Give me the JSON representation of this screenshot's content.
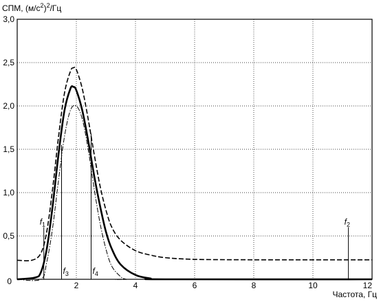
{
  "chart_data": {
    "type": "line",
    "ylabel": "СПМ, (м/с",
    "ylabel_sup": "2",
    "ylabel_sup2": "2",
    "ylabel_tail": "/Гц",
    "ylabel_close": ")",
    "xlabel": "Частота, Гц",
    "xlim": [
      0,
      12
    ],
    "ylim": [
      0,
      3.0
    ],
    "grid": true,
    "x_ticks": [
      0,
      2,
      4,
      6,
      8,
      10,
      12
    ],
    "x_tick_labels": [
      "0",
      "2",
      "4",
      "6",
      "8",
      "10",
      "12"
    ],
    "y_ticks": [
      0.5,
      1.0,
      1.5,
      2.0,
      2.5,
      3.0
    ],
    "y_tick_labels": [
      "0,5",
      "1,0",
      "1,5",
      "2,0",
      "2,5",
      "3,0"
    ],
    "origin_label": "0",
    "series": [
      {
        "style": "dashed",
        "x": [
          0,
          0.5,
          0.8,
          1.0,
          1.2,
          1.4,
          1.6,
          1.8,
          1.9,
          2.0,
          2.2,
          2.4,
          2.6,
          2.8,
          3.0,
          3.2,
          3.5,
          4.0,
          4.5,
          5.0,
          6.0,
          8.0,
          10.0,
          12.0
        ],
        "y": [
          0.22,
          0.22,
          0.3,
          0.55,
          1.05,
          1.65,
          2.15,
          2.4,
          2.44,
          2.42,
          2.2,
          1.85,
          1.45,
          1.08,
          0.8,
          0.6,
          0.45,
          0.33,
          0.28,
          0.25,
          0.23,
          0.225,
          0.225,
          0.225
        ]
      },
      {
        "style": "solid",
        "x": [
          0,
          0.6,
          0.8,
          1.0,
          1.2,
          1.4,
          1.6,
          1.8,
          1.9,
          2.0,
          2.2,
          2.4,
          2.6,
          2.8,
          3.0,
          3.2,
          3.5,
          4.0,
          4.5,
          5.0,
          12.0
        ],
        "y": [
          0,
          0.02,
          0.08,
          0.35,
          0.85,
          1.45,
          1.95,
          2.2,
          2.22,
          2.18,
          1.95,
          1.6,
          1.2,
          0.85,
          0.55,
          0.35,
          0.17,
          0.05,
          0.01,
          0.0,
          0.0
        ]
      },
      {
        "style": "dashdot",
        "x": [
          0,
          0.8,
          1.0,
          1.2,
          1.4,
          1.6,
          1.8,
          2.0,
          2.2,
          2.4,
          2.6,
          2.8,
          3.0,
          3.2,
          3.5,
          3.7,
          4.0,
          12.0
        ],
        "y": [
          0,
          0.0,
          0.2,
          0.6,
          1.15,
          1.65,
          1.95,
          2.0,
          1.85,
          1.5,
          1.05,
          0.65,
          0.35,
          0.15,
          0.03,
          0.0,
          0.0,
          0.0
        ]
      }
    ],
    "markers": [
      {
        "name": "f",
        "sub": "1",
        "x": 0.9,
        "top": 0.6
      },
      {
        "name": "f",
        "sub": "3",
        "x": 1.5,
        "top": 1.55
      },
      {
        "name": "f",
        "sub": "4",
        "x": 2.5,
        "top": 1.68
      },
      {
        "name": "f",
        "sub": "2",
        "x": 11.2,
        "top": 0.6
      }
    ]
  }
}
